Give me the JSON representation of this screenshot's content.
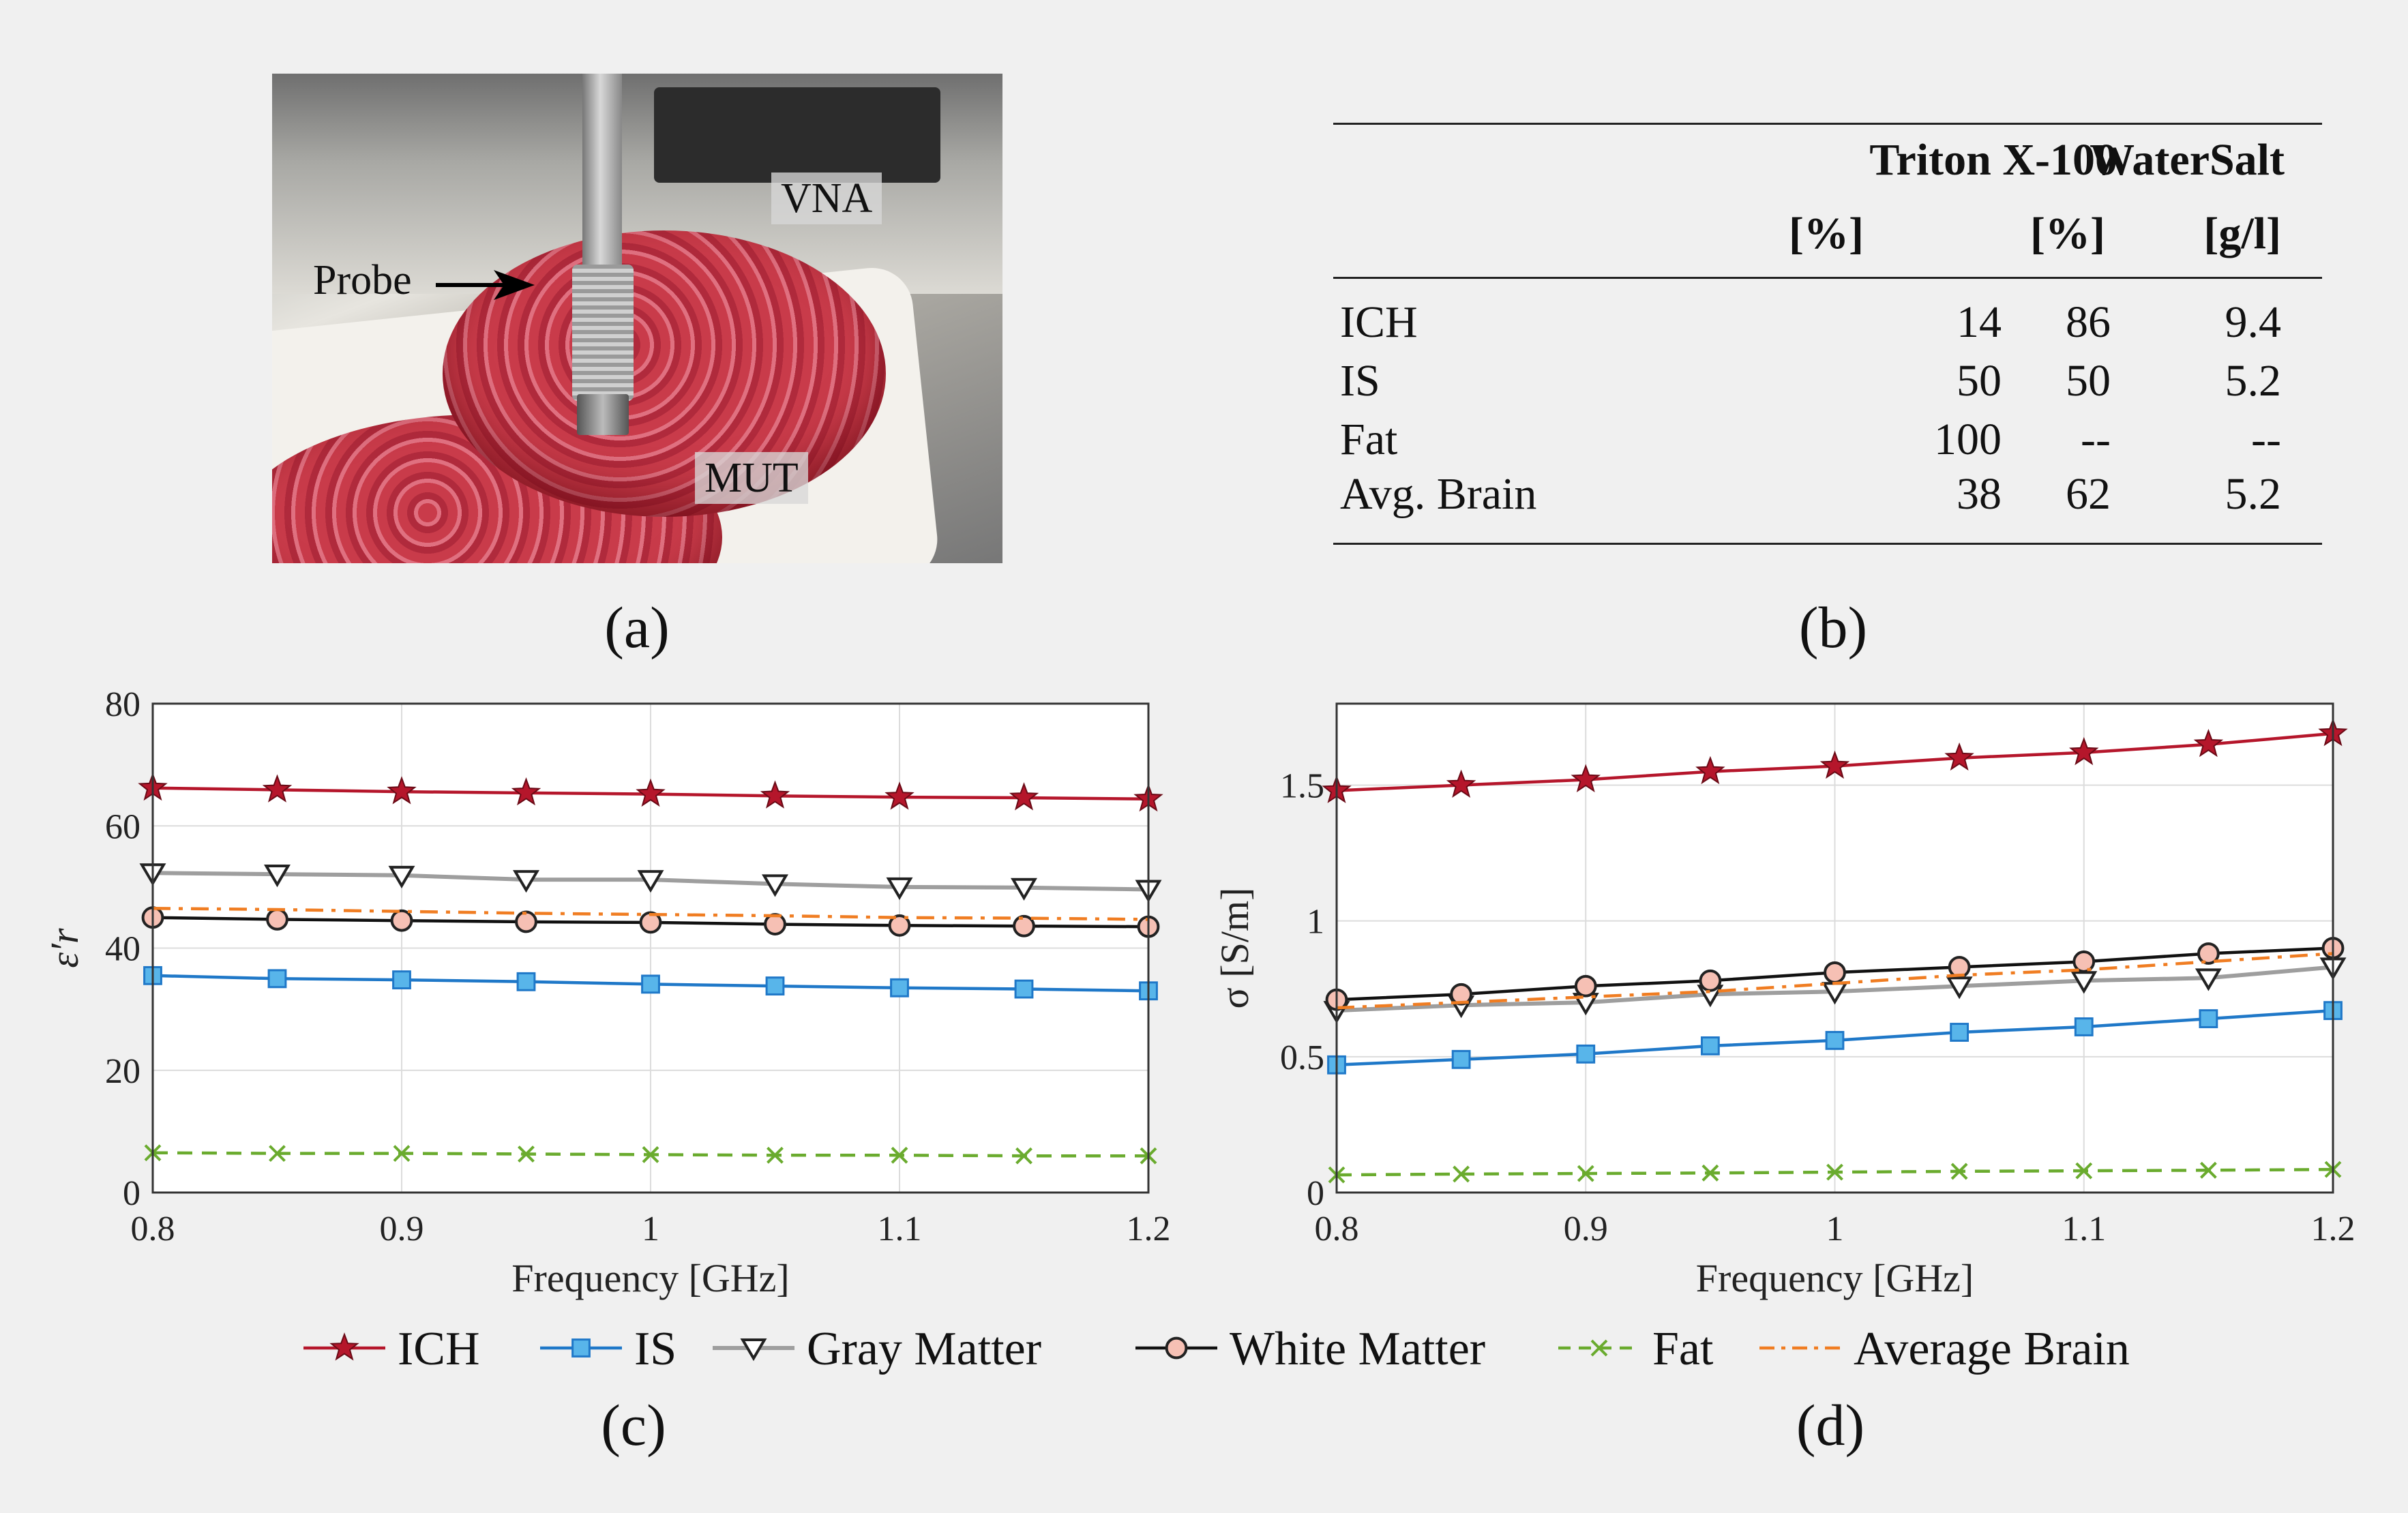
{
  "panels": {
    "a": "(a)",
    "b": "(b)",
    "c": "(c)",
    "d": "(d)"
  },
  "photo": {
    "labels": {
      "vna": "VNA",
      "probe": "Probe",
      "mut": "MUT"
    }
  },
  "table": {
    "headers": [
      "",
      "Triton X-100",
      "Water",
      "Salt"
    ],
    "units": [
      "",
      "[%]",
      "[%]",
      "[g/l]"
    ],
    "rows": [
      [
        "ICH",
        "14",
        "86",
        "9.4"
      ],
      [
        "IS",
        "50",
        "50",
        "5.2"
      ],
      [
        "Fat",
        "100",
        "--",
        "--"
      ],
      [
        "Avg. Brain",
        "38",
        "62",
        "5.2"
      ]
    ]
  },
  "legend": [
    {
      "name": "ICH",
      "color": "#b5162b",
      "marker": "star",
      "dash": ""
    },
    {
      "name": "IS",
      "color": "#1f78c8",
      "marker": "square",
      "dash": ""
    },
    {
      "name": "Gray Matter",
      "color": "#9e9e9e",
      "marker": "triangle-down",
      "dash": ""
    },
    {
      "name": "White Matter",
      "color": "#111111",
      "marker": "circle",
      "dash": ""
    },
    {
      "name": "Fat",
      "color": "#6aab2e",
      "marker": "x",
      "dash": "dashed"
    },
    {
      "name": "Average Brain",
      "color": "#f07d22",
      "marker": "none",
      "dash": "dashdot"
    }
  ],
  "chart_data": [
    {
      "type": "line",
      "panel": "c",
      "xlabel": "Frequency [GHz]",
      "ylabel": "ε′r",
      "xlim": [
        0.8,
        1.2
      ],
      "ylim": [
        0,
        80
      ],
      "xticks": [
        "0.8",
        "0.9",
        "1",
        "1.1",
        "1.2"
      ],
      "yticks": [
        "0",
        "20",
        "40",
        "60",
        "80"
      ],
      "grid": true,
      "x": [
        0.8,
        0.85,
        0.9,
        0.95,
        1.0,
        1.05,
        1.1,
        1.15,
        1.2
      ],
      "series": [
        {
          "name": "ICH",
          "values": [
            66.2,
            65.9,
            65.6,
            65.4,
            65.2,
            64.9,
            64.7,
            64.6,
            64.4
          ]
        },
        {
          "name": "IS",
          "values": [
            35.5,
            35.0,
            34.8,
            34.5,
            34.1,
            33.8,
            33.5,
            33.3,
            33.0
          ]
        },
        {
          "name": "Gray Matter",
          "values": [
            52.3,
            52.1,
            51.9,
            51.2,
            51.2,
            50.5,
            50.0,
            49.9,
            49.6
          ]
        },
        {
          "name": "White Matter",
          "values": [
            45.0,
            44.7,
            44.5,
            44.3,
            44.2,
            43.9,
            43.7,
            43.6,
            43.5
          ]
        },
        {
          "name": "Fat",
          "values": [
            6.5,
            6.4,
            6.4,
            6.3,
            6.2,
            6.1,
            6.1,
            6.0,
            6.0
          ]
        },
        {
          "name": "Average Brain",
          "values": [
            46.5,
            46.3,
            46.0,
            45.7,
            45.5,
            45.3,
            45.0,
            44.9,
            44.7
          ]
        }
      ]
    },
    {
      "type": "line",
      "panel": "d",
      "xlabel": "Frequency [GHz]",
      "ylabel": "σ [S/m]",
      "xlim": [
        0.8,
        1.2
      ],
      "ylim": [
        0,
        1.8
      ],
      "xticks": [
        "0.8",
        "0.9",
        "1",
        "1.1",
        "1.2"
      ],
      "yticks": [
        "0",
        "0.5",
        "1",
        "1.5"
      ],
      "grid": true,
      "x": [
        0.8,
        0.85,
        0.9,
        0.95,
        1.0,
        1.05,
        1.1,
        1.15,
        1.2
      ],
      "series": [
        {
          "name": "ICH",
          "values": [
            1.48,
            1.5,
            1.52,
            1.55,
            1.57,
            1.6,
            1.62,
            1.65,
            1.69
          ]
        },
        {
          "name": "IS",
          "values": [
            0.47,
            0.49,
            0.51,
            0.54,
            0.56,
            0.59,
            0.61,
            0.64,
            0.67
          ]
        },
        {
          "name": "Gray Matter",
          "values": [
            0.67,
            0.69,
            0.7,
            0.73,
            0.74,
            0.76,
            0.78,
            0.79,
            0.83
          ]
        },
        {
          "name": "White Matter",
          "values": [
            0.71,
            0.73,
            0.76,
            0.78,
            0.81,
            0.83,
            0.85,
            0.88,
            0.9
          ]
        },
        {
          "name": "Fat",
          "values": [
            0.065,
            0.068,
            0.07,
            0.072,
            0.075,
            0.078,
            0.08,
            0.082,
            0.085
          ]
        },
        {
          "name": "Average Brain",
          "values": [
            0.68,
            0.7,
            0.72,
            0.74,
            0.77,
            0.8,
            0.82,
            0.85,
            0.88
          ]
        }
      ]
    }
  ]
}
